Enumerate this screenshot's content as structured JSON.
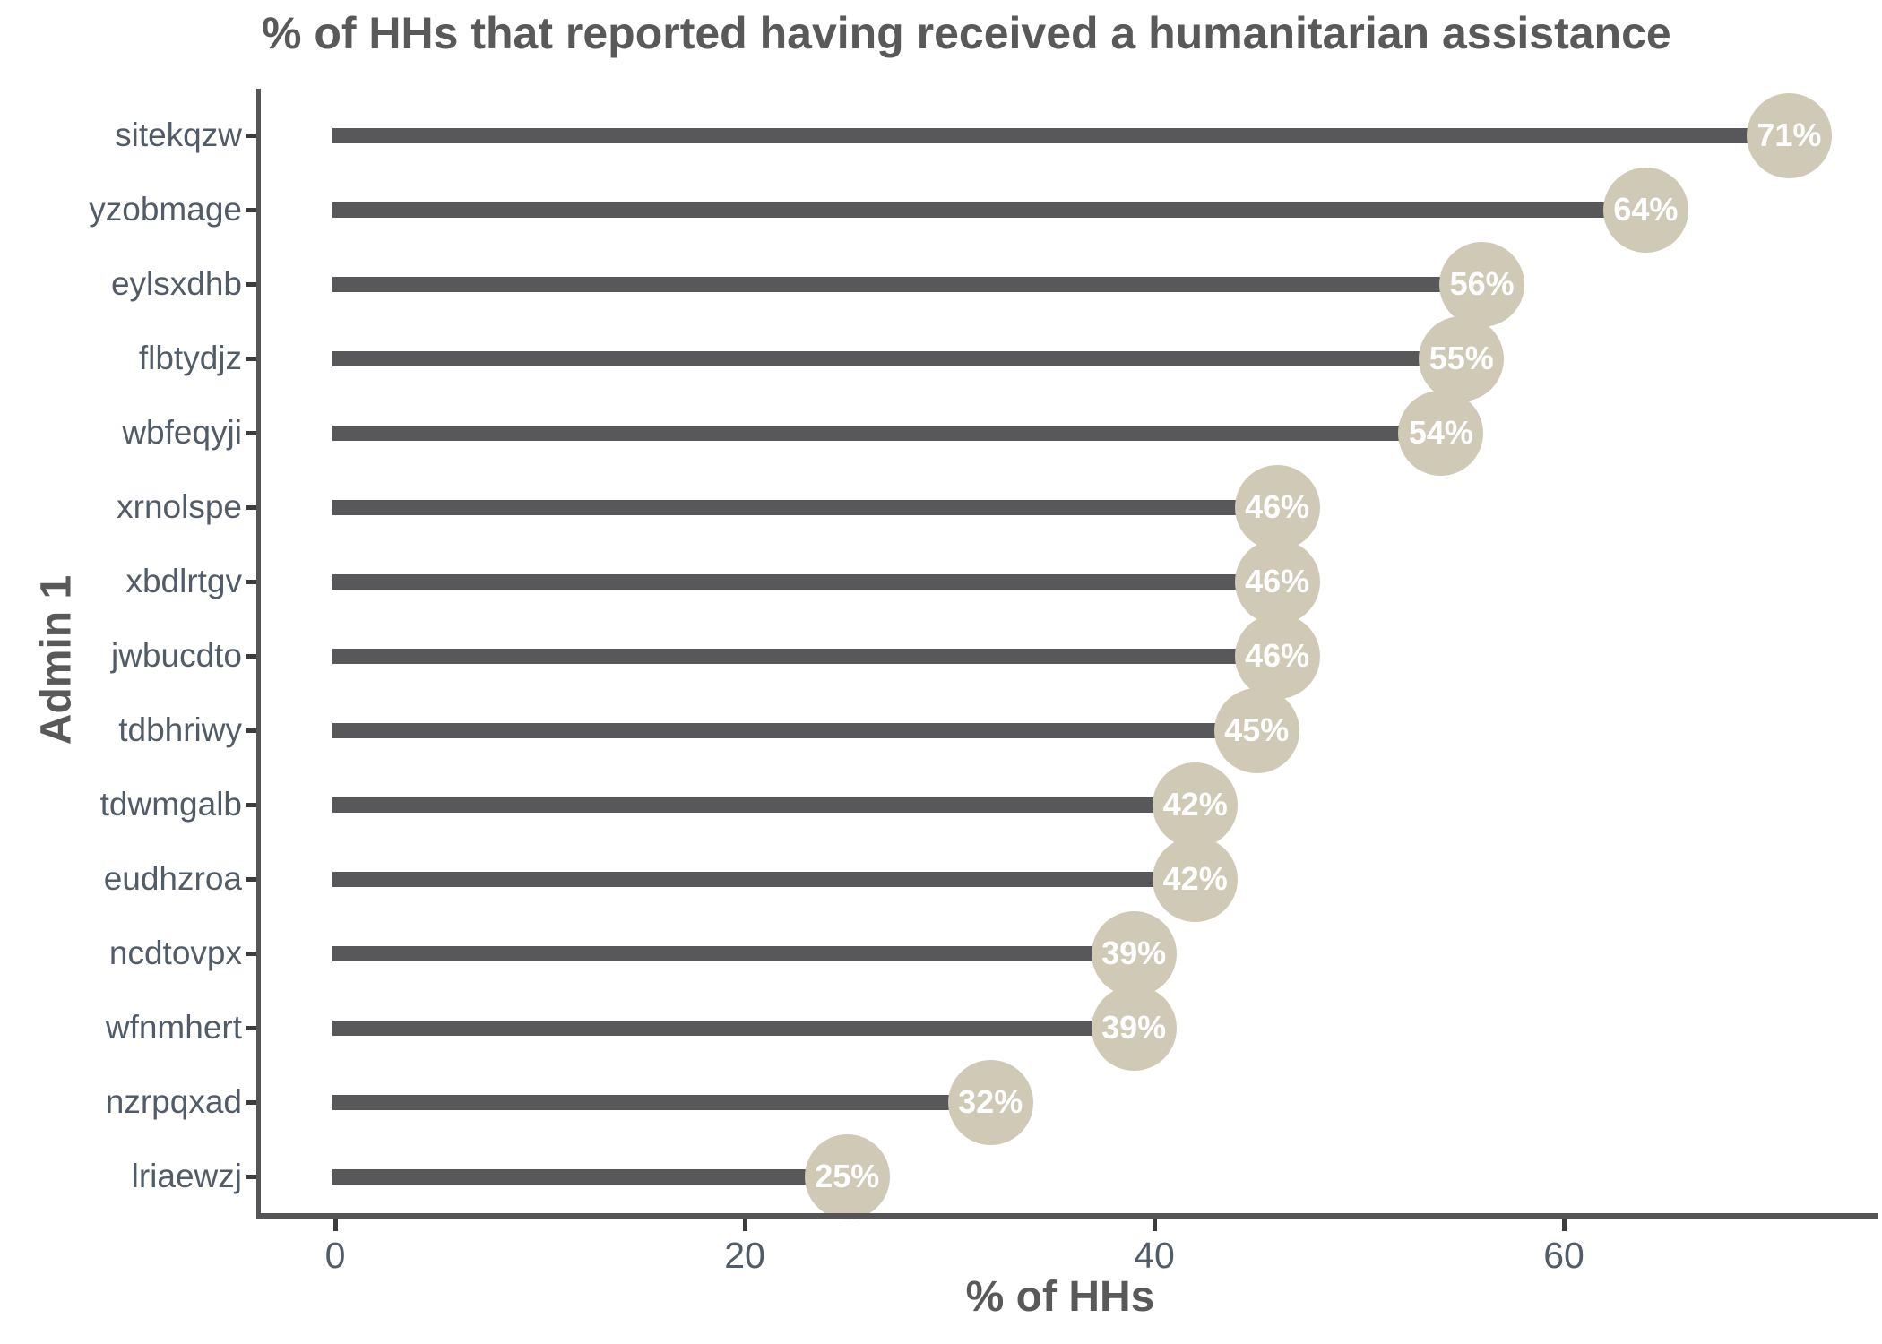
{
  "title": "% of HHs that reported having received a humanitarian assistance",
  "chart_data": {
    "type": "bar",
    "subtype": "lollipop",
    "orientation": "horizontal",
    "title": "% of HHs that reported having received a humanitarian assistance",
    "xlabel": "% of HHs",
    "ylabel": "Admin 1",
    "categories": [
      "sitekqzw",
      "yzobmage",
      "eylsxdhb",
      "flbtydjz",
      "wbfeqyji",
      "xrnolspe",
      "xbdlrtgv",
      "jwbucdto",
      "tdbhriwy",
      "tdwmgalb",
      "eudhzroa",
      "ncdtovpx",
      "wfnmhert",
      "nzrpqxad",
      "lriaewzj"
    ],
    "values": [
      71,
      64,
      56,
      55,
      54,
      46,
      46,
      46,
      45,
      42,
      42,
      39,
      39,
      32,
      25
    ],
    "value_labels": [
      "71%",
      "64%",
      "56%",
      "55%",
      "54%",
      "46%",
      "46%",
      "46%",
      "45%",
      "42%",
      "42%",
      "39%",
      "39%",
      "32%",
      "25%"
    ],
    "x_ticks": [
      0,
      20,
      40,
      60
    ],
    "x_tick_labels": [
      "0",
      "20",
      "40",
      "60"
    ],
    "xlim": [
      0,
      75
    ],
    "grid": false,
    "legend": "none",
    "colors": {
      "bar": "#58585a",
      "dot_fill": "#d0c9b6",
      "dot_text": "#ffffff",
      "title_text": "#595959",
      "axis_text": "#515c68",
      "axis_line": "#555557"
    }
  }
}
